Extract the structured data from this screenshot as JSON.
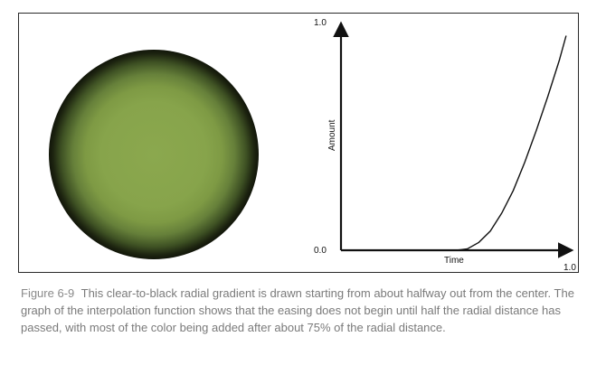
{
  "figure": {
    "graph": {
      "y_top_label": "1.0",
      "y_origin_label": "0.0",
      "x_end_label": "1.0",
      "y_axis_label": "Amount",
      "x_axis_label": "Time"
    },
    "circle_colors": {
      "center": "#8ba84e",
      "edge": "#111509"
    }
  },
  "chart_data": {
    "type": "line",
    "xlabel": "Time",
    "ylabel": "Amount",
    "xlim": [
      0,
      1
    ],
    "ylim": [
      0,
      1
    ],
    "series": [
      {
        "x": [
          0,
          0.1,
          0.2,
          0.3,
          0.4,
          0.5,
          0.55,
          0.6,
          0.65,
          0.7,
          0.75,
          0.8,
          0.85,
          0.9,
          0.95,
          0.98
        ],
        "values": [
          0,
          0,
          0,
          0,
          0,
          0,
          0.006,
          0.035,
          0.085,
          0.165,
          0.265,
          0.39,
          0.53,
          0.68,
          0.84,
          0.95
        ]
      }
    ]
  },
  "caption": {
    "label": "Figure 6-9",
    "text": "This clear-to-black radial gradient is drawn starting from about halfway out from the center. The graph of the interpolation function shows that the easing does not begin until half the radial distance has passed, with most of the color being added after about 75% of the radial distance."
  }
}
